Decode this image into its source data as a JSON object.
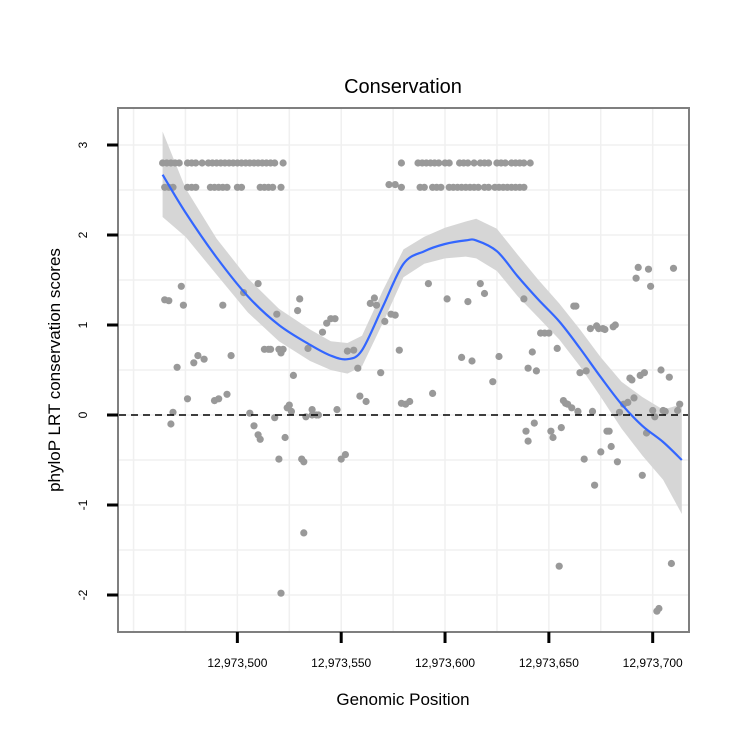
{
  "chart_data": {
    "type": "scatter",
    "title": "Conservation",
    "xlabel": "Genomic Position",
    "ylabel": "phyloP LRT conservation scores",
    "xlim": [
      12973443,
      12973717
    ],
    "ylim": [
      -2.4,
      3.4
    ],
    "x_ticks": [
      12973500,
      12973550,
      12973600,
      12973650,
      12973700
    ],
    "x_tick_labels": [
      "12,973,500",
      "12,973,550",
      "12,973,600",
      "12,973,650",
      "12,973,700"
    ],
    "y_ticks": [
      -2,
      -1,
      0,
      1,
      2,
      3
    ],
    "y_tick_labels": [
      "-2",
      "-1",
      "0",
      "1",
      "2",
      "3"
    ],
    "reference_line": {
      "y": 0,
      "style": "dashed"
    },
    "grid": true,
    "colors": {
      "points": "#999999",
      "smooth_line": "#3366ff",
      "ribbon": "#d4d4d4",
      "panel_border": "#7f7f7f",
      "grid": "#f0f0f0"
    },
    "series": [
      {
        "name": "phyloP scores",
        "points": [
          [
            12973464,
            2.8
          ],
          [
            12973466,
            2.8
          ],
          [
            12973468,
            2.8
          ],
          [
            12973470,
            2.8
          ],
          [
            12973472,
            2.8
          ],
          [
            12973476,
            2.8
          ],
          [
            12973478,
            2.8
          ],
          [
            12973480,
            2.8
          ],
          [
            12973483,
            2.8
          ],
          [
            12973486,
            2.8
          ],
          [
            12973488,
            2.8
          ],
          [
            12973490,
            2.8
          ],
          [
            12973492,
            2.8
          ],
          [
            12973494,
            2.8
          ],
          [
            12973496,
            2.8
          ],
          [
            12973498,
            2.8
          ],
          [
            12973500,
            2.8
          ],
          [
            12973502,
            2.8
          ],
          [
            12973504,
            2.8
          ],
          [
            12973506,
            2.8
          ],
          [
            12973508,
            2.8
          ],
          [
            12973510,
            2.8
          ],
          [
            12973512,
            2.8
          ],
          [
            12973514,
            2.8
          ],
          [
            12973516,
            2.8
          ],
          [
            12973518,
            2.8
          ],
          [
            12973522,
            2.8
          ],
          [
            12973465,
            2.53
          ],
          [
            12973467,
            2.53
          ],
          [
            12973469,
            2.53
          ],
          [
            12973476,
            2.53
          ],
          [
            12973478,
            2.53
          ],
          [
            12973480,
            2.53
          ],
          [
            12973487,
            2.53
          ],
          [
            12973489,
            2.53
          ],
          [
            12973491,
            2.53
          ],
          [
            12973493,
            2.53
          ],
          [
            12973495,
            2.53
          ],
          [
            12973500,
            2.53
          ],
          [
            12973502,
            2.53
          ],
          [
            12973511,
            2.53
          ],
          [
            12973513,
            2.53
          ],
          [
            12973515,
            2.53
          ],
          [
            12973517,
            2.53
          ],
          [
            12973521,
            2.53
          ],
          [
            12973573,
            2.56
          ],
          [
            12973576,
            2.56
          ],
          [
            12973579,
            2.53
          ],
          [
            12973579,
            2.8
          ],
          [
            12973587,
            2.8
          ],
          [
            12973589,
            2.8
          ],
          [
            12973591,
            2.8
          ],
          [
            12973593,
            2.8
          ],
          [
            12973595,
            2.8
          ],
          [
            12973597,
            2.8
          ],
          [
            12973600,
            2.8
          ],
          [
            12973602,
            2.8
          ],
          [
            12973607,
            2.8
          ],
          [
            12973609,
            2.8
          ],
          [
            12973611,
            2.8
          ],
          [
            12973614,
            2.8
          ],
          [
            12973617,
            2.8
          ],
          [
            12973619,
            2.8
          ],
          [
            12973621,
            2.8
          ],
          [
            12973625,
            2.8
          ],
          [
            12973627,
            2.8
          ],
          [
            12973629,
            2.8
          ],
          [
            12973632,
            2.8
          ],
          [
            12973634,
            2.8
          ],
          [
            12973636,
            2.8
          ],
          [
            12973638,
            2.8
          ],
          [
            12973641,
            2.8
          ],
          [
            12973588,
            2.53
          ],
          [
            12973590,
            2.53
          ],
          [
            12973594,
            2.53
          ],
          [
            12973596,
            2.53
          ],
          [
            12973598,
            2.53
          ],
          [
            12973602,
            2.53
          ],
          [
            12973604,
            2.53
          ],
          [
            12973606,
            2.53
          ],
          [
            12973608,
            2.53
          ],
          [
            12973610,
            2.53
          ],
          [
            12973612,
            2.53
          ],
          [
            12973614,
            2.53
          ],
          [
            12973616,
            2.53
          ],
          [
            12973619,
            2.53
          ],
          [
            12973621,
            2.53
          ],
          [
            12973624,
            2.53
          ],
          [
            12973626,
            2.53
          ],
          [
            12973628,
            2.53
          ],
          [
            12973630,
            2.53
          ],
          [
            12973632,
            2.53
          ],
          [
            12973634,
            2.53
          ],
          [
            12973636,
            2.53
          ],
          [
            12973638,
            2.53
          ],
          [
            12973465,
            1.28
          ],
          [
            12973467,
            1.27
          ],
          [
            12973473,
            1.43
          ],
          [
            12973474,
            1.22
          ],
          [
            12973471,
            0.53
          ],
          [
            12973476,
            0.18
          ],
          [
            12973479,
            0.58
          ],
          [
            12973481,
            0.66
          ],
          [
            12973484,
            0.62
          ],
          [
            12973489,
            0.16
          ],
          [
            12973491,
            0.18
          ],
          [
            12973493,
            1.22
          ],
          [
            12973495,
            0.23
          ],
          [
            12973497,
            0.66
          ],
          [
            12973503,
            1.36
          ],
          [
            12973510,
            1.46
          ],
          [
            12973521,
            -1.98
          ],
          [
            12973468,
            -0.1
          ],
          [
            12973469,
            0.03
          ],
          [
            12973506,
            0.02
          ],
          [
            12973508,
            -0.12
          ],
          [
            12973510,
            -0.22
          ],
          [
            12973511,
            -0.27
          ],
          [
            12973513,
            0.73
          ],
          [
            12973515,
            0.73
          ],
          [
            12973516,
            0.73
          ],
          [
            12973518,
            -0.03
          ],
          [
            12973519,
            1.12
          ],
          [
            12973520,
            0.73
          ],
          [
            12973521,
            0.69
          ],
          [
            12973522,
            0.73
          ],
          [
            12973520,
            -0.49
          ],
          [
            12973523,
            -0.25
          ],
          [
            12973524,
            0.08
          ],
          [
            12973525,
            0.11
          ],
          [
            12973526,
            0.04
          ],
          [
            12973527,
            0.44
          ],
          [
            12973529,
            1.16
          ],
          [
            12973530,
            1.29
          ],
          [
            12973531,
            -0.49
          ],
          [
            12973532,
            -0.52
          ],
          [
            12973533,
            -0.02
          ],
          [
            12973536,
            0.06
          ],
          [
            12973532,
            -1.31
          ],
          [
            12973534,
            0.74
          ],
          [
            12973536,
            0.0
          ],
          [
            12973538,
            0.0
          ],
          [
            12973539,
            0.0
          ],
          [
            12973541,
            0.92
          ],
          [
            12973543,
            1.02
          ],
          [
            12973545,
            1.07
          ],
          [
            12973547,
            1.07
          ],
          [
            12973548,
            0.06
          ],
          [
            12973550,
            -0.49
          ],
          [
            12973552,
            -0.44
          ],
          [
            12973553,
            0.71
          ],
          [
            12973556,
            0.72
          ],
          [
            12973558,
            0.52
          ],
          [
            12973559,
            0.21
          ],
          [
            12973562,
            0.15
          ],
          [
            12973564,
            1.24
          ],
          [
            12973566,
            1.3
          ],
          [
            12973567,
            1.22
          ],
          [
            12973569,
            0.47
          ],
          [
            12973571,
            1.04
          ],
          [
            12973574,
            1.12
          ],
          [
            12973576,
            1.11
          ],
          [
            12973578,
            0.72
          ],
          [
            12973579,
            0.13
          ],
          [
            12973581,
            0.12
          ],
          [
            12973583,
            0.15
          ],
          [
            12973592,
            1.46
          ],
          [
            12973594,
            0.24
          ],
          [
            12973601,
            1.29
          ],
          [
            12973608,
            0.64
          ],
          [
            12973611,
            1.26
          ],
          [
            12973613,
            0.6
          ],
          [
            12973617,
            1.46
          ],
          [
            12973619,
            1.35
          ],
          [
            12973623,
            0.37
          ],
          [
            12973626,
            0.65
          ],
          [
            12973638,
            1.29
          ],
          [
            12973640,
            0.52
          ],
          [
            12973642,
            0.7
          ],
          [
            12973644,
            0.49
          ],
          [
            12973639,
            -0.18
          ],
          [
            12973640,
            -0.29
          ],
          [
            12973643,
            -0.09
          ],
          [
            12973646,
            0.91
          ],
          [
            12973648,
            0.91
          ],
          [
            12973650,
            0.91
          ],
          [
            12973651,
            -0.18
          ],
          [
            12973652,
            -0.25
          ],
          [
            12973654,
            0.74
          ],
          [
            12973656,
            -0.14
          ],
          [
            12973657,
            0.16
          ],
          [
            12973658,
            0.13
          ],
          [
            12973659,
            0.12
          ],
          [
            12973661,
            0.08
          ],
          [
            12973662,
            1.21
          ],
          [
            12973663,
            1.21
          ],
          [
            12973664,
            0.04
          ],
          [
            12973655,
            -1.68
          ],
          [
            12973665,
            0.47
          ],
          [
            12973667,
            -0.49
          ],
          [
            12973668,
            0.49
          ],
          [
            12973670,
            0.96
          ],
          [
            12973671,
            0.04
          ],
          [
            12973672,
            -0.78
          ],
          [
            12973673,
            0.99
          ],
          [
            12973674,
            0.96
          ],
          [
            12973675,
            -0.41
          ],
          [
            12973676,
            0.96
          ],
          [
            12973677,
            0.95
          ],
          [
            12973678,
            -0.18
          ],
          [
            12973679,
            -0.18
          ],
          [
            12973680,
            -0.35
          ],
          [
            12973681,
            0.98
          ],
          [
            12973682,
            1.0
          ],
          [
            12973683,
            -0.52
          ],
          [
            12973684,
            0.03
          ],
          [
            12973686,
            0.12
          ],
          [
            12973688,
            0.14
          ],
          [
            12973689,
            0.41
          ],
          [
            12973690,
            0.39
          ],
          [
            12973691,
            0.19
          ],
          [
            12973692,
            1.52
          ],
          [
            12973693,
            1.64
          ],
          [
            12973694,
            0.44
          ],
          [
            12973695,
            -0.67
          ],
          [
            12973696,
            0.47
          ],
          [
            12973697,
            -0.2
          ],
          [
            12973698,
            1.62
          ],
          [
            12973699,
            1.43
          ],
          [
            12973700,
            0.05
          ],
          [
            12973701,
            -0.02
          ],
          [
            12973702,
            -2.18
          ],
          [
            12973703,
            -2.15
          ],
          [
            12973704,
            0.5
          ],
          [
            12973705,
            0.05
          ],
          [
            12973706,
            0.04
          ],
          [
            12973708,
            0.42
          ],
          [
            12973709,
            -1.65
          ],
          [
            12973710,
            1.63
          ],
          [
            12973712,
            0.05
          ],
          [
            12973713,
            0.12
          ]
        ]
      },
      {
        "name": "loess smooth",
        "x": [
          12973464,
          12973475,
          12973490,
          12973505,
          12973520,
          12973535,
          12973545,
          12973553,
          12973560,
          12973570,
          12973580,
          12973590,
          12973600,
          12973610,
          12973615,
          12973625,
          12973635,
          12973645,
          12973655,
          12973665,
          12973675,
          12973685,
          12973695,
          12973705,
          12973714
        ],
        "y": [
          2.67,
          2.25,
          1.75,
          1.32,
          1.0,
          0.78,
          0.66,
          0.62,
          0.72,
          1.2,
          1.68,
          1.82,
          1.9,
          1.94,
          1.94,
          1.82,
          1.54,
          1.28,
          1.04,
          0.74,
          0.42,
          0.12,
          -0.12,
          -0.3,
          -0.5
        ],
        "ci_upper": [
          3.15,
          2.52,
          1.96,
          1.52,
          1.18,
          0.95,
          0.82,
          0.8,
          0.88,
          1.38,
          1.84,
          1.98,
          2.08,
          2.15,
          2.18,
          2.07,
          1.78,
          1.5,
          1.24,
          0.95,
          0.64,
          0.37,
          0.2,
          0.06,
          0.12
        ],
        "ci_lower": [
          2.2,
          1.98,
          1.56,
          1.14,
          0.82,
          0.6,
          0.5,
          0.46,
          0.54,
          1.02,
          1.53,
          1.68,
          1.74,
          1.76,
          1.74,
          1.6,
          1.32,
          1.08,
          0.84,
          0.54,
          0.2,
          -0.15,
          -0.45,
          -0.72,
          -1.1
        ]
      }
    ]
  }
}
